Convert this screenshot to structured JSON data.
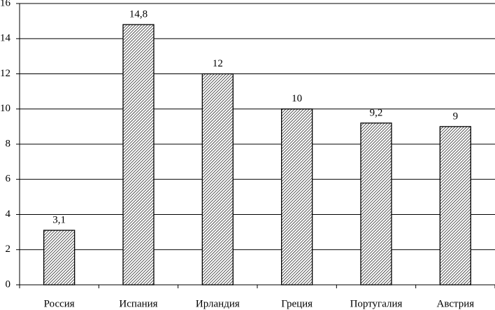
{
  "chart_data": {
    "type": "bar",
    "categories": [
      "Россия",
      "Испания",
      "Ирландия",
      "Греция",
      "Португалия",
      "Австрия"
    ],
    "values": [
      3.1,
      14.8,
      12,
      10,
      9.2,
      9
    ],
    "value_labels": [
      "3,1",
      "14,8",
      "12",
      "10",
      "9,2",
      "9"
    ],
    "color": "#000000",
    "ylim": [
      0,
      16
    ],
    "yticks": [
      0,
      2,
      4,
      6,
      8,
      10,
      12,
      14,
      16
    ],
    "grid": true
  }
}
